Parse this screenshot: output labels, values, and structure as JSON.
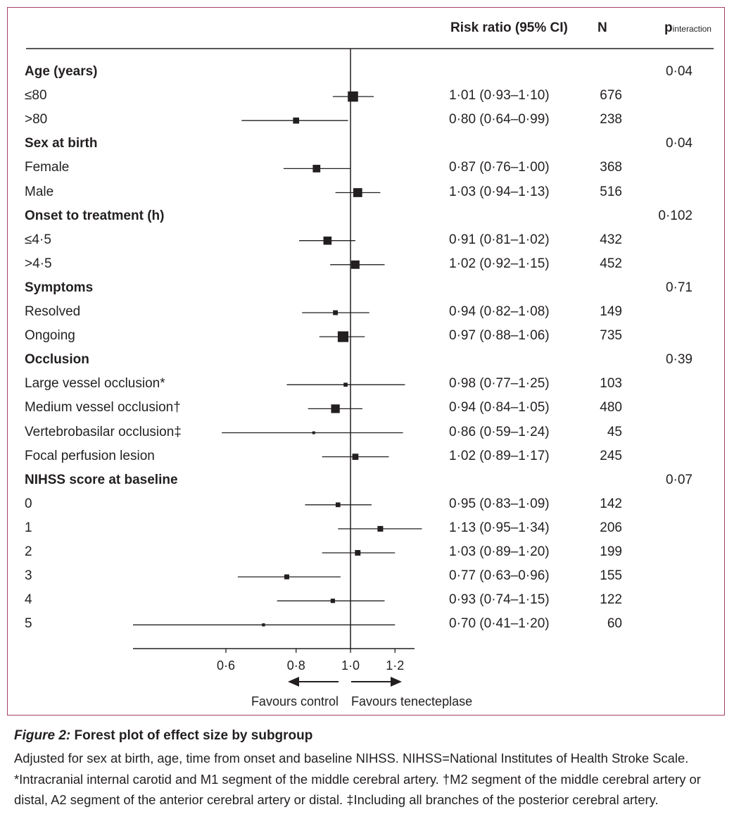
{
  "chart_data": {
    "type": "forest",
    "headers": {
      "rr": "Risk ratio (95% CI)",
      "n": "N",
      "p_main": "p",
      "p_sub": "interaction"
    },
    "rows": [
      {
        "label": "Age (years)",
        "group": true,
        "p": "0·04"
      },
      {
        "label": "≤80",
        "rr": 1.01,
        "lo": 0.93,
        "hi": 1.1,
        "text": "1·01 (0·93–1·10)",
        "n": "676"
      },
      {
        "label": ">80",
        "rr": 0.8,
        "lo": 0.64,
        "hi": 0.99,
        "text": "0·80 (0·64–0·99)",
        "n": "238"
      },
      {
        "label": "Sex at birth",
        "group": true,
        "p": "0·04"
      },
      {
        "label": "Female",
        "rr": 0.87,
        "lo": 0.76,
        "hi": 1.0,
        "text": "0·87 (0·76–1·00)",
        "n": "368"
      },
      {
        "label": "Male",
        "rr": 1.03,
        "lo": 0.94,
        "hi": 1.13,
        "text": "1·03 (0·94–1·13)",
        "n": "516"
      },
      {
        "label": "Onset to treatment (h)",
        "group": true,
        "p": "0·102"
      },
      {
        "label": "≤4·5",
        "rr": 0.91,
        "lo": 0.81,
        "hi": 1.02,
        "text": "0·91 (0·81–1·02)",
        "n": "432"
      },
      {
        "label": ">4·5",
        "rr": 1.02,
        "lo": 0.92,
        "hi": 1.15,
        "text": "1·02 (0·92–1·15)",
        "n": "452"
      },
      {
        "label": "Symptoms",
        "group": true,
        "p": "0·71"
      },
      {
        "label": "Resolved",
        "rr": 0.94,
        "lo": 0.82,
        "hi": 1.08,
        "text": "0·94 (0·82–1·08)",
        "n": "149"
      },
      {
        "label": "Ongoing",
        "rr": 0.97,
        "lo": 0.88,
        "hi": 1.06,
        "text": "0·97 (0·88–1·06)",
        "n": "735"
      },
      {
        "label": "Occlusion",
        "group": true,
        "p": "0·39"
      },
      {
        "label": "Large vessel occlusion*",
        "rr": 0.98,
        "lo": 0.77,
        "hi": 1.25,
        "text": "0·98 (0·77–1·25)",
        "n": "103"
      },
      {
        "label": "Medium vessel occlusion†",
        "rr": 0.94,
        "lo": 0.84,
        "hi": 1.05,
        "text": "0·94 (0·84–1·05)",
        "n": "480"
      },
      {
        "label": "Vertebrobasilar occlusion‡",
        "rr": 0.86,
        "lo": 0.59,
        "hi": 1.24,
        "text": "0·86 (0·59–1·24)",
        "n": "45"
      },
      {
        "label": "Focal perfusion lesion",
        "rr": 1.02,
        "lo": 0.89,
        "hi": 1.17,
        "text": "1·02 (0·89–1·17)",
        "n": "245"
      },
      {
        "label": "NIHSS score at baseline",
        "group": true,
        "p": "0·07"
      },
      {
        "label": "0",
        "rr": 0.95,
        "lo": 0.83,
        "hi": 1.09,
        "text": "0·95 (0·83–1·09)",
        "n": "142"
      },
      {
        "label": "1",
        "rr": 1.13,
        "lo": 0.95,
        "hi": 1.34,
        "text": "1·13 (0·95–1·34)",
        "n": "206"
      },
      {
        "label": "2",
        "rr": 1.03,
        "lo": 0.89,
        "hi": 1.2,
        "text": "1·03 (0·89–1·20)",
        "n": "199"
      },
      {
        "label": "3",
        "rr": 0.77,
        "lo": 0.63,
        "hi": 0.96,
        "text": "0·77 (0·63–0·96)",
        "n": "155"
      },
      {
        "label": "4",
        "rr": 0.93,
        "lo": 0.74,
        "hi": 1.15,
        "text": "0·93 (0·74–1·15)",
        "n": "122"
      },
      {
        "label": "5",
        "rr": 0.7,
        "lo": 0.41,
        "hi": 1.2,
        "text": "0·70 (0·41–1·20)",
        "n": "60"
      }
    ],
    "x_scale": "log",
    "xlim": [
      0.41,
      1.3
    ],
    "null_value": 1.0,
    "x_ticks": [
      0.6,
      0.8,
      1.0,
      1.2
    ],
    "x_tick_labels": [
      "0·6",
      "0·8",
      "1·0",
      "1·2"
    ],
    "favours_left": "Favours control",
    "favours_right": "Favours tenecteplase"
  },
  "caption": {
    "figure_label": "Figure 2:",
    "title": "Forest plot of effect size by subgroup",
    "body": "Adjusted for sex at birth, age, time from onset and baseline NIHSS. NIHSS=National Institutes of Health Stroke Scale. *Intracranial internal carotid and M1 segment of the middle cerebral artery. †M2 segment of the middle cerebral artery or distal, A2 segment of the anterior cerebral artery or distal. ‡Including all branches of the posterior cerebral artery."
  },
  "colors": {
    "frame": "#a3416a",
    "ink": "#231f20"
  }
}
